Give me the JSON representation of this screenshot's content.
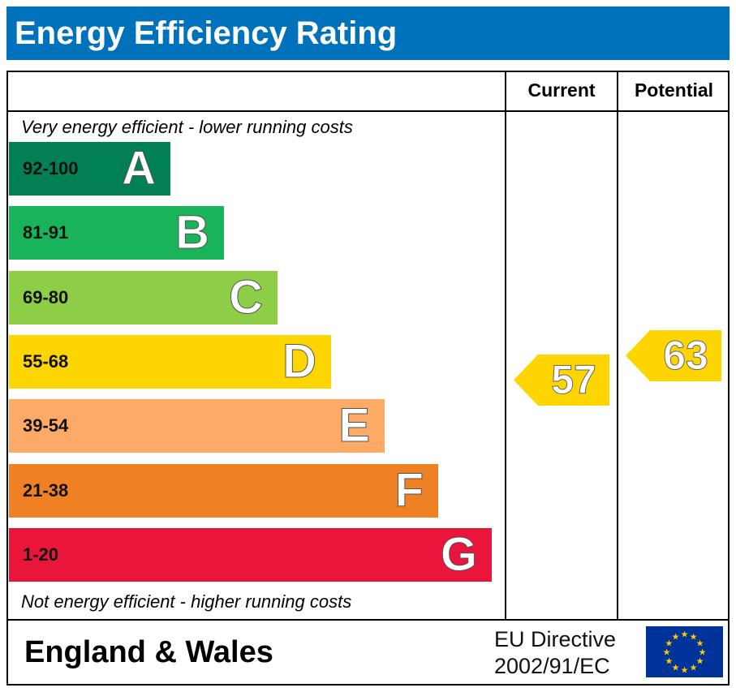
{
  "title": "Energy Efficiency Rating",
  "columns": {
    "current": "Current",
    "potential": "Potential"
  },
  "notes": {
    "top": "Very energy efficient - lower running costs",
    "bottom": "Not energy efficient - higher running costs"
  },
  "footer": {
    "country": "England & Wales",
    "directive_line1": "EU Directive",
    "directive_line2": "2002/91/EC"
  },
  "chart_data": {
    "type": "bar",
    "bands": [
      {
        "range": "92-100",
        "letter": "A",
        "color": "#008054"
      },
      {
        "range": "81-91",
        "letter": "B",
        "color": "#19b459"
      },
      {
        "range": "69-80",
        "letter": "C",
        "color": "#8dce46"
      },
      {
        "range": "55-68",
        "letter": "D",
        "color": "#ffd500"
      },
      {
        "range": "39-54",
        "letter": "E",
        "color": "#fcaa65"
      },
      {
        "range": "21-38",
        "letter": "F",
        "color": "#ef8023"
      },
      {
        "range": "1-20",
        "letter": "G",
        "color": "#e9153b"
      }
    ],
    "current": {
      "value": "57",
      "band": "D",
      "color": "#ffd500"
    },
    "potential": {
      "value": "63",
      "band": "D",
      "color": "#ffd500"
    }
  }
}
